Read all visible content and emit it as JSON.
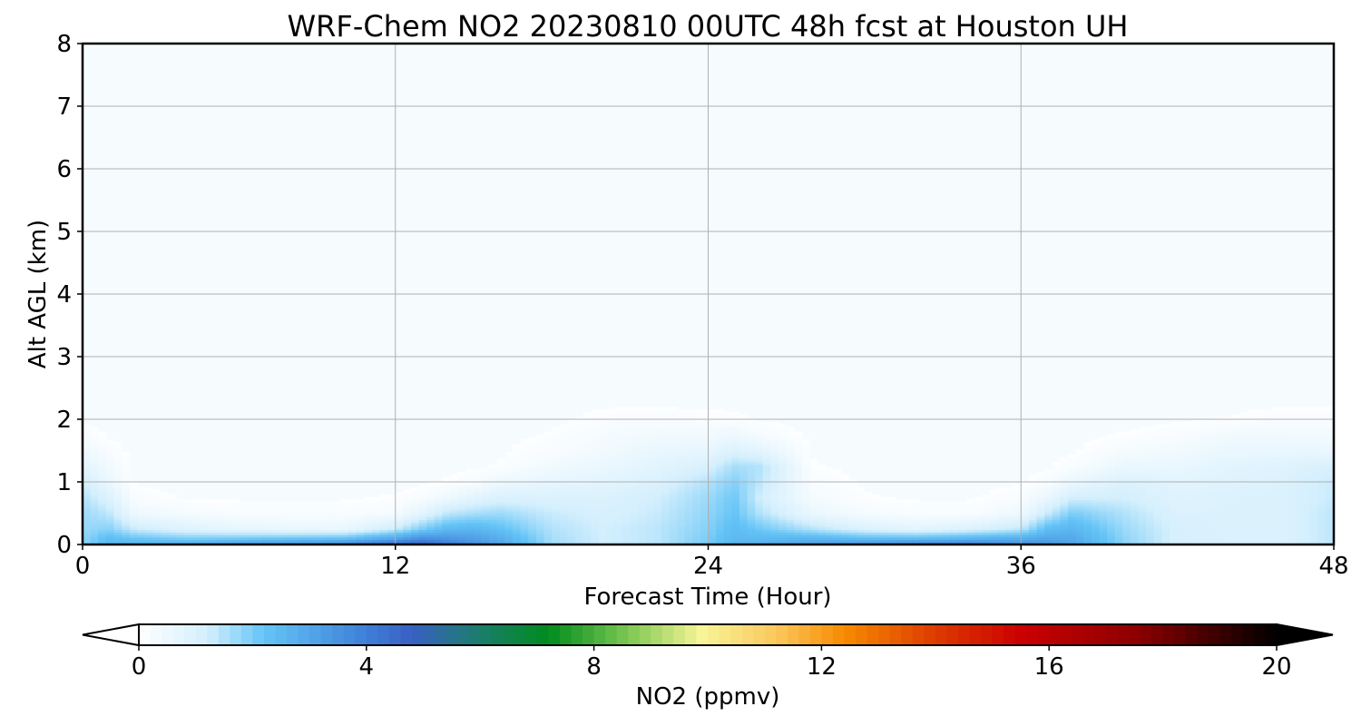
{
  "chart_data": {
    "type": "heatmap",
    "title": "WRF-Chem NO2  20230810 00UTC 48h fcst at Houston UH",
    "xlabel": "Forecast Time (Hour)",
    "ylabel": "Alt AGL (km)",
    "xlim": [
      0,
      48
    ],
    "ylim": [
      0,
      8
    ],
    "x_ticks": [
      "0",
      "12",
      "24",
      "36",
      "48"
    ],
    "y_ticks": [
      "0",
      "1",
      "2",
      "3",
      "4",
      "5",
      "6",
      "7",
      "8"
    ],
    "grid": true,
    "colorbar": {
      "label": "NO2  (ppmv)",
      "range": [
        0,
        20
      ],
      "extend": "both",
      "ticks": [
        "0",
        "4",
        "8",
        "12",
        "16",
        "20"
      ],
      "colors": [
        {
          "v": 0,
          "c": "#ffffff"
        },
        {
          "v": 1.2,
          "c": "#d4effd"
        },
        {
          "v": 2.2,
          "c": "#64c4f6"
        },
        {
          "v": 4.0,
          "c": "#3f7fd8"
        },
        {
          "v": 4.8,
          "c": "#3a5fc4"
        },
        {
          "v": 5.8,
          "c": "#1f7a78"
        },
        {
          "v": 7.2,
          "c": "#008c1e"
        },
        {
          "v": 8.8,
          "c": "#8fcf5a"
        },
        {
          "v": 9.9,
          "c": "#f8f598"
        },
        {
          "v": 11.2,
          "c": "#fbc85e"
        },
        {
          "v": 12.4,
          "c": "#f78b00"
        },
        {
          "v": 14.0,
          "c": "#dd3b00"
        },
        {
          "v": 15.5,
          "c": "#cc0000"
        },
        {
          "v": 17.5,
          "c": "#8e0000"
        },
        {
          "v": 20,
          "c": "#000000"
        }
      ]
    },
    "grid_data": {
      "x": [
        0,
        1,
        2,
        4,
        6,
        8,
        10,
        12,
        13,
        14,
        15,
        16,
        18,
        20,
        22,
        24,
        25,
        26,
        28,
        30,
        32,
        34,
        36,
        37,
        38,
        40,
        42,
        44,
        46,
        48
      ],
      "y": [
        0,
        0.1,
        0.25,
        0.5,
        0.75,
        1.0,
        1.25,
        1.5,
        1.75,
        2.0,
        2.25,
        2.5,
        3,
        8
      ],
      "z": [
        [
          1.8,
          1.8,
          1.7,
          1.7,
          1.5,
          1.2,
          0.8,
          0.5,
          0.2,
          0.05,
          0.02,
          0.01,
          0,
          0
        ],
        [
          2.4,
          2.4,
          1.9,
          1.4,
          1.0,
          0.6,
          0.4,
          0.2,
          0.05,
          0.02,
          0.01,
          0,
          0,
          0
        ],
        [
          2.6,
          2.2,
          1.3,
          0.5,
          0.2,
          0.05,
          0.02,
          0.01,
          0,
          0,
          0,
          0,
          0,
          0
        ],
        [
          2.9,
          2.0,
          0.9,
          0.3,
          0.05,
          0.02,
          0.01,
          0,
          0,
          0,
          0,
          0,
          0,
          0
        ],
        [
          3.3,
          2.1,
          0.7,
          0.2,
          0.05,
          0.02,
          0.01,
          0,
          0,
          0,
          0,
          0,
          0,
          0
        ],
        [
          3.6,
          2.2,
          0.6,
          0.2,
          0.05,
          0.02,
          0.01,
          0,
          0,
          0,
          0,
          0,
          0,
          0
        ],
        [
          3.9,
          2.3,
          0.6,
          0.2,
          0.05,
          0.02,
          0.01,
          0,
          0,
          0,
          0,
          0,
          0,
          0
        ],
        [
          4.7,
          3.0,
          1.3,
          0.3,
          0.1,
          0.02,
          0.01,
          0,
          0,
          0,
          0,
          0,
          0,
          0
        ],
        [
          4.9,
          3.6,
          2.0,
          0.8,
          0.2,
          0.05,
          0.02,
          0,
          0,
          0,
          0,
          0,
          0,
          0
        ],
        [
          4.2,
          3.4,
          2.5,
          1.4,
          0.5,
          0.1,
          0.03,
          0.01,
          0,
          0,
          0,
          0,
          0,
          0
        ],
        [
          3.6,
          3.2,
          2.6,
          1.6,
          0.8,
          0.2,
          0.05,
          0.02,
          0.01,
          0,
          0,
          0,
          0,
          0
        ],
        [
          3.0,
          2.8,
          2.3,
          1.7,
          1.0,
          0.5,
          0.1,
          0.05,
          0.02,
          0.01,
          0,
          0,
          0,
          0
        ],
        [
          1.6,
          1.6,
          1.5,
          1.3,
          1.0,
          0.7,
          0.4,
          0.2,
          0.1,
          0.03,
          0.01,
          0,
          0,
          0
        ],
        [
          1.2,
          1.2,
          1.2,
          1.1,
          1.0,
          0.8,
          0.6,
          0.4,
          0.3,
          0.15,
          0.05,
          0.01,
          0,
          0
        ],
        [
          1.4,
          1.4,
          1.4,
          1.3,
          1.2,
          1.0,
          0.8,
          0.6,
          0.4,
          0.2,
          0.05,
          0.01,
          0,
          0
        ],
        [
          2.0,
          2.0,
          1.9,
          1.8,
          1.7,
          1.5,
          1.1,
          0.7,
          0.4,
          0.15,
          0.03,
          0.01,
          0,
          0
        ],
        [
          2.6,
          2.5,
          2.4,
          2.2,
          2.1,
          1.9,
          1.6,
          1.0,
          0.5,
          0.15,
          0.02,
          0.01,
          0,
          0
        ],
        [
          2.7,
          2.5,
          2.1,
          1.5,
          1.2,
          1.4,
          1.5,
          0.8,
          0.3,
          0.05,
          0.01,
          0,
          0,
          0
        ],
        [
          3.2,
          2.6,
          1.5,
          0.6,
          0.3,
          0.2,
          0.1,
          0.05,
          0.02,
          0.01,
          0,
          0,
          0,
          0
        ],
        [
          3.6,
          2.4,
          1.0,
          0.3,
          0.1,
          0.05,
          0.02,
          0.01,
          0,
          0,
          0,
          0,
          0,
          0
        ],
        [
          4.0,
          2.4,
          0.8,
          0.2,
          0.05,
          0.02,
          0.01,
          0,
          0,
          0,
          0,
          0,
          0,
          0
        ],
        [
          4.2,
          2.6,
          1.0,
          0.2,
          0.05,
          0.02,
          0.01,
          0,
          0,
          0,
          0,
          0,
          0,
          0
        ],
        [
          3.6,
          2.8,
          1.4,
          0.5,
          0.2,
          0.05,
          0.02,
          0.01,
          0,
          0,
          0,
          0,
          0,
          0
        ],
        [
          3.5,
          3.0,
          2.4,
          1.3,
          0.6,
          0.2,
          0.05,
          0.02,
          0.01,
          0,
          0,
          0,
          0,
          0
        ],
        [
          3.0,
          2.9,
          2.6,
          2.0,
          1.2,
          0.6,
          0.2,
          0.05,
          0.02,
          0.01,
          0,
          0,
          0,
          0
        ],
        [
          1.8,
          1.8,
          1.7,
          1.5,
          1.2,
          1.0,
          0.6,
          0.3,
          0.1,
          0.02,
          0.01,
          0,
          0,
          0
        ],
        [
          1.1,
          1.1,
          1.1,
          1.0,
          0.9,
          0.8,
          0.6,
          0.4,
          0.2,
          0.05,
          0.01,
          0,
          0,
          0
        ],
        [
          1.0,
          1.0,
          1.0,
          1.0,
          1.0,
          0.9,
          0.8,
          0.6,
          0.4,
          0.1,
          0.02,
          0,
          0,
          0
        ],
        [
          1.0,
          1.0,
          1.0,
          1.0,
          1.0,
          1.0,
          0.9,
          0.6,
          0.4,
          0.2,
          0.05,
          0,
          0,
          0
        ],
        [
          1.4,
          1.4,
          1.4,
          1.4,
          1.3,
          1.3,
          1.1,
          0.6,
          0.35,
          0.2,
          0.05,
          0,
          0,
          0
        ]
      ]
    }
  }
}
